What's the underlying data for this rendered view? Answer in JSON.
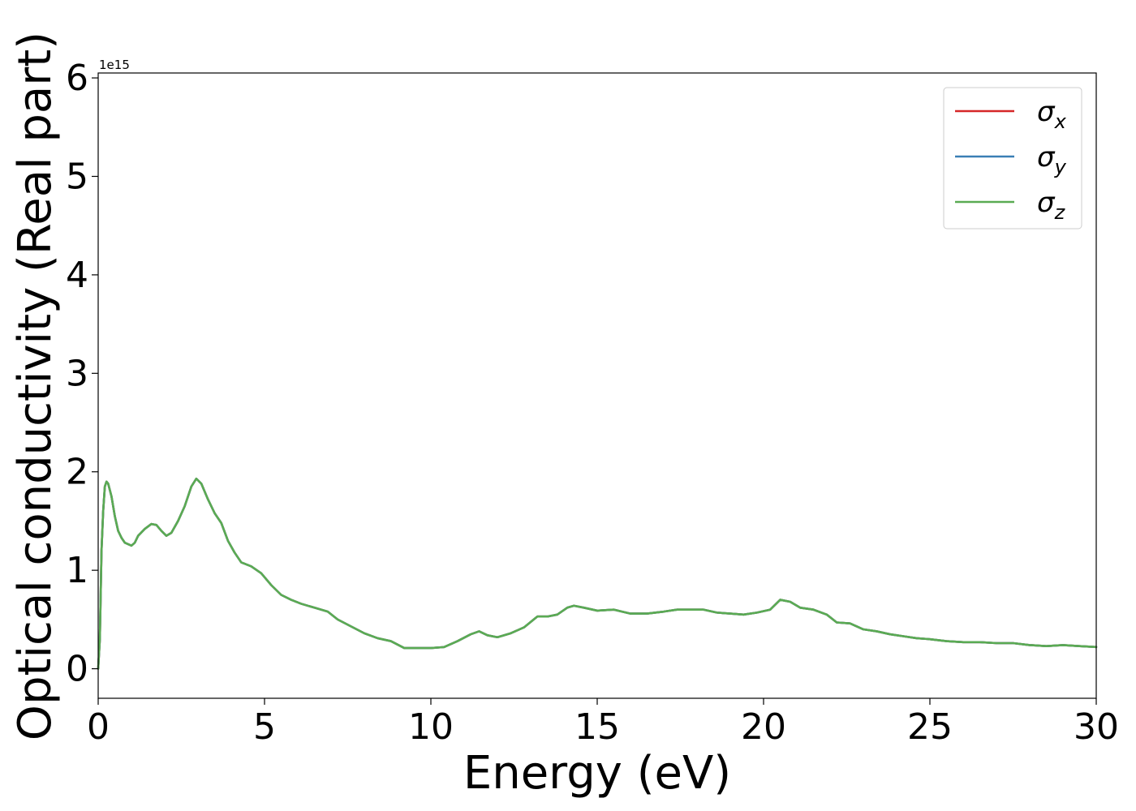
{
  "chart_data": {
    "type": "line",
    "xlabel": "Energy (eV)",
    "ylabel": "Optical conductivity (Real part)",
    "y_offset_label": "1e15",
    "xlim": [
      0,
      30
    ],
    "ylim": [
      -0.3,
      6.05
    ],
    "x_ticks": [
      0,
      5,
      10,
      15,
      20,
      25,
      30
    ],
    "y_ticks": [
      0,
      1,
      2,
      3,
      4,
      5,
      6
    ],
    "grid": false,
    "legend_position": "top-right",
    "series_colors": {
      "x": "#d62728",
      "y": "#3a7fb5",
      "z": "#5aab53"
    },
    "series_shared_data": {
      "x": [
        0,
        0.05,
        0.1,
        0.15,
        0.2,
        0.25,
        0.3,
        0.4,
        0.5,
        0.6,
        0.7,
        0.8,
        1.0,
        1.1,
        1.2,
        1.4,
        1.6,
        1.75,
        1.9,
        2.05,
        2.2,
        2.4,
        2.6,
        2.8,
        2.95,
        3.1,
        3.3,
        3.5,
        3.7,
        3.9,
        4.1,
        4.3,
        4.6,
        4.9,
        5.2,
        5.5,
        5.8,
        6.1,
        6.5,
        6.9,
        7.2,
        7.6,
        8.0,
        8.4,
        8.8,
        9.2,
        9.6,
        10.0,
        10.4,
        10.8,
        11.2,
        11.45,
        11.7,
        12.0,
        12.4,
        12.8,
        13.2,
        13.5,
        13.8,
        14.1,
        14.3,
        14.6,
        15.0,
        15.5,
        16.0,
        16.5,
        17.0,
        17.4,
        17.8,
        18.2,
        18.6,
        19.0,
        19.4,
        19.8,
        20.2,
        20.5,
        20.8,
        21.1,
        21.5,
        21.9,
        22.2,
        22.6,
        23.0,
        23.4,
        23.8,
        24.2,
        24.6,
        25.0,
        25.5,
        26.0,
        26.5,
        27.0,
        27.5,
        28.0,
        28.5,
        29.0,
        29.5,
        30.0
      ],
      "y": [
        0,
        0.3,
        1.2,
        1.6,
        1.85,
        1.9,
        1.88,
        1.75,
        1.55,
        1.4,
        1.33,
        1.28,
        1.25,
        1.28,
        1.35,
        1.42,
        1.47,
        1.46,
        1.4,
        1.35,
        1.38,
        1.5,
        1.65,
        1.85,
        1.93,
        1.88,
        1.72,
        1.58,
        1.48,
        1.3,
        1.18,
        1.08,
        1.04,
        0.97,
        0.85,
        0.75,
        0.7,
        0.66,
        0.62,
        0.58,
        0.5,
        0.43,
        0.36,
        0.31,
        0.28,
        0.21,
        0.21,
        0.21,
        0.22,
        0.28,
        0.35,
        0.38,
        0.34,
        0.32,
        0.36,
        0.42,
        0.53,
        0.53,
        0.55,
        0.62,
        0.64,
        0.62,
        0.59,
        0.6,
        0.56,
        0.56,
        0.58,
        0.6,
        0.6,
        0.6,
        0.57,
        0.56,
        0.55,
        0.57,
        0.6,
        0.7,
        0.68,
        0.62,
        0.6,
        0.55,
        0.47,
        0.46,
        0.4,
        0.38,
        0.35,
        0.33,
        0.31,
        0.3,
        0.28,
        0.27,
        0.27,
        0.26,
        0.26,
        0.24,
        0.23,
        0.24,
        0.23,
        0.22
      ]
    },
    "series": [
      {
        "name": "σ",
        "sub": "x",
        "color": "#d62728"
      },
      {
        "name": "σ",
        "sub": "y",
        "color": "#3a7fb5"
      },
      {
        "name": "σ",
        "sub": "z",
        "color": "#5aab53"
      }
    ]
  }
}
